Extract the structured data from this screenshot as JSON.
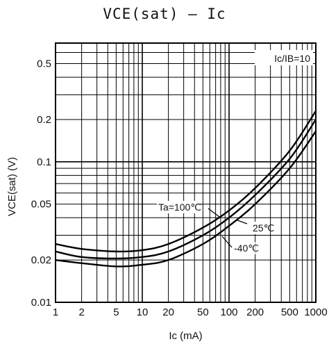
{
  "title": "VCE(sat)  –  Ic",
  "chart_data": {
    "type": "line",
    "xscale": "log",
    "yscale": "log",
    "xlim": [
      1,
      1000
    ],
    "ylim": [
      0.01,
      0.7
    ],
    "grid": true,
    "xlabel": "Ic (mA)",
    "ylabel": "VCE(sat) (V)",
    "x_ticks": [
      1,
      2,
      5,
      10,
      20,
      50,
      100,
      200,
      500,
      1000
    ],
    "x_tick_labels": [
      "1",
      "2",
      "5",
      "10",
      "20",
      "50",
      "100",
      "200",
      "500",
      "1000"
    ],
    "y_ticks": [
      0.01,
      0.02,
      0.05,
      0.1,
      0.2,
      0.5
    ],
    "y_tick_labels": [
      "0.01",
      "0.02",
      "0.05",
      "0.1",
      "0.2",
      "0.5"
    ],
    "condition_label": "Ic/IB=10",
    "series": [
      {
        "name": "Ta=100℃",
        "x": [
          1,
          2,
          5,
          10,
          20,
          50,
          100,
          200,
          500,
          1000
        ],
        "y": [
          0.026,
          0.024,
          0.023,
          0.0235,
          0.026,
          0.034,
          0.045,
          0.065,
          0.12,
          0.23
        ]
      },
      {
        "name": "25℃",
        "x": [
          1,
          2,
          5,
          10,
          20,
          50,
          100,
          200,
          500,
          1000
        ],
        "y": [
          0.023,
          0.021,
          0.0205,
          0.021,
          0.023,
          0.03,
          0.04,
          0.058,
          0.105,
          0.2
        ]
      },
      {
        "name": "-40℃",
        "x": [
          1,
          2,
          5,
          10,
          20,
          50,
          100,
          200,
          500,
          1000
        ],
        "y": [
          0.02,
          0.019,
          0.018,
          0.0185,
          0.02,
          0.026,
          0.035,
          0.05,
          0.09,
          0.165
        ]
      }
    ]
  }
}
